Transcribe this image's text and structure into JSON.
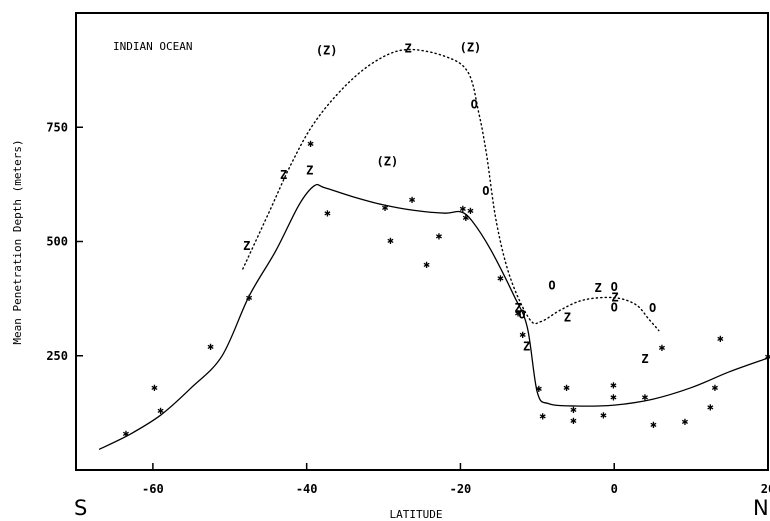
{
  "chart_data": {
    "type": "scatter",
    "title": "INDIAN OCEAN",
    "xlabel": "LATITUDE",
    "ylabel": "Mean Penetration Depth (meters)",
    "xlim": [
      -70,
      20
    ],
    "ylim": [
      0,
      1000
    ],
    "x_ticks": [
      "-60",
      "-40",
      "-20",
      "0",
      "20"
    ],
    "x_tick_values": [
      -60,
      -40,
      -20,
      0,
      20
    ],
    "y_ticks": [
      "250",
      "500",
      "750"
    ],
    "y_tick_values": [
      250,
      500,
      750
    ],
    "corner_labels": {
      "left": "S",
      "right": "N"
    },
    "grid": false,
    "series": [
      {
        "marker": "*",
        "points": [
          [
            -63.5,
            80
          ],
          [
            -59.8,
            180
          ],
          [
            -59.0,
            130
          ],
          [
            -52.5,
            270
          ],
          [
            -47.5,
            378
          ],
          [
            -39.5,
            714
          ],
          [
            -37.3,
            562
          ],
          [
            -29.8,
            574
          ],
          [
            -29.1,
            502
          ],
          [
            -26.3,
            592
          ],
          [
            -24.4,
            450
          ],
          [
            -22.8,
            512
          ],
          [
            -19.7,
            572
          ],
          [
            -19.3,
            552
          ],
          [
            -18.7,
            568
          ],
          [
            -14.8,
            420
          ],
          [
            -12.5,
            343
          ],
          [
            -11.9,
            296
          ],
          [
            -9.8,
            178
          ],
          [
            -9.3,
            118
          ],
          [
            -6.2,
            180
          ],
          [
            -5.3,
            132
          ],
          [
            -5.3,
            108
          ],
          [
            -1.4,
            120
          ],
          [
            -0.1,
            186
          ],
          [
            -0.1,
            160
          ],
          [
            4.0,
            160
          ],
          [
            5.1,
            100
          ],
          [
            9.2,
            106
          ],
          [
            12.5,
            138
          ],
          [
            13.1,
            180
          ],
          [
            13.8,
            288
          ],
          [
            20.0,
            248
          ],
          [
            6.2,
            268
          ]
        ]
      },
      {
        "marker": "Z",
        "points": [
          [
            -47.8,
            490
          ],
          [
            -43.0,
            645
          ],
          [
            -39.6,
            655
          ],
          [
            -26.8,
            922
          ],
          [
            -12.5,
            355
          ],
          [
            -11.4,
            270
          ],
          [
            -6.1,
            334
          ],
          [
            -2.1,
            398
          ],
          [
            0.1,
            377
          ],
          [
            4.0,
            243
          ]
        ]
      },
      {
        "marker": "(Z)",
        "points": [
          [
            -37.4,
            918
          ],
          [
            -18.7,
            925
          ],
          [
            -29.5,
            675
          ]
        ]
      },
      {
        "marker": "O",
        "points": [
          [
            -18.2,
            800
          ],
          [
            -16.7,
            610
          ],
          [
            -12.0,
            340
          ],
          [
            -8.1,
            404
          ],
          [
            0.0,
            400
          ],
          [
            0.0,
            356
          ],
          [
            5.0,
            355
          ]
        ]
      }
    ],
    "curves": [
      {
        "style": "solid",
        "points": [
          [
            -67,
            45
          ],
          [
            -63,
            78
          ],
          [
            -59,
            120
          ],
          [
            -55,
            180
          ],
          [
            -51,
            250
          ],
          [
            -47.5,
            380
          ],
          [
            -44,
            480
          ],
          [
            -41,
            580
          ],
          [
            -39,
            622
          ],
          [
            -37.7,
            618
          ],
          [
            -34,
            598
          ],
          [
            -30,
            580
          ],
          [
            -26,
            568
          ],
          [
            -22,
            562
          ],
          [
            -20,
            565
          ],
          [
            -18.5,
            545
          ],
          [
            -16,
            480
          ],
          [
            -13,
            380
          ],
          [
            -11.3,
            312
          ],
          [
            -10,
            170
          ],
          [
            -8.5,
            145
          ],
          [
            -5,
            140
          ],
          [
            0,
            142
          ],
          [
            5,
            155
          ],
          [
            10,
            180
          ],
          [
            15,
            215
          ],
          [
            20,
            245
          ]
        ]
      },
      {
        "style": "dotted",
        "points": [
          [
            -48.3,
            440
          ],
          [
            -45,
            560
          ],
          [
            -42,
            670
          ],
          [
            -39,
            760
          ],
          [
            -35,
            840
          ],
          [
            -31,
            895
          ],
          [
            -27,
            920
          ],
          [
            -22,
            905
          ],
          [
            -19,
            870
          ],
          [
            -17.6,
            780
          ],
          [
            -16.6,
            690
          ],
          [
            -15.3,
            540
          ],
          [
            -13.5,
            420
          ],
          [
            -11,
            330
          ],
          [
            -9.5,
            325
          ],
          [
            -7,
            350
          ],
          [
            -4,
            372
          ],
          [
            0,
            377
          ],
          [
            2.8,
            362
          ],
          [
            4.5,
            330
          ],
          [
            5.8,
            305
          ]
        ]
      }
    ]
  }
}
